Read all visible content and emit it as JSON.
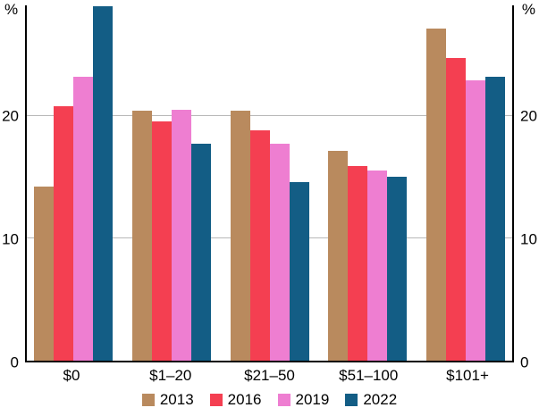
{
  "chart_data": {
    "type": "bar",
    "title": "",
    "categories": [
      "$0",
      "$1–20",
      "$21–50",
      "$51–100",
      "$101+"
    ],
    "series": [
      {
        "name": "2013",
        "color": "#b98a5e",
        "values": [
          14.2,
          20.4,
          20.4,
          17.1,
          27.1
        ]
      },
      {
        "name": "2016",
        "color": "#f43f51",
        "values": [
          20.8,
          19.5,
          18.8,
          15.9,
          24.7
        ]
      },
      {
        "name": "2019",
        "color": "#ee7ed1",
        "values": [
          23.2,
          20.5,
          17.7,
          15.5,
          22.9
        ]
      },
      {
        "name": "2022",
        "color": "#135d85",
        "values": [
          28.9,
          17.7,
          14.6,
          15.0,
          23.2
        ]
      }
    ],
    "ylabel_left": "%",
    "ylabel_right": "%",
    "yticks": [
      0,
      10,
      20
    ],
    "ylim": [
      0,
      29
    ],
    "grid": true,
    "legend_position": "bottom"
  }
}
